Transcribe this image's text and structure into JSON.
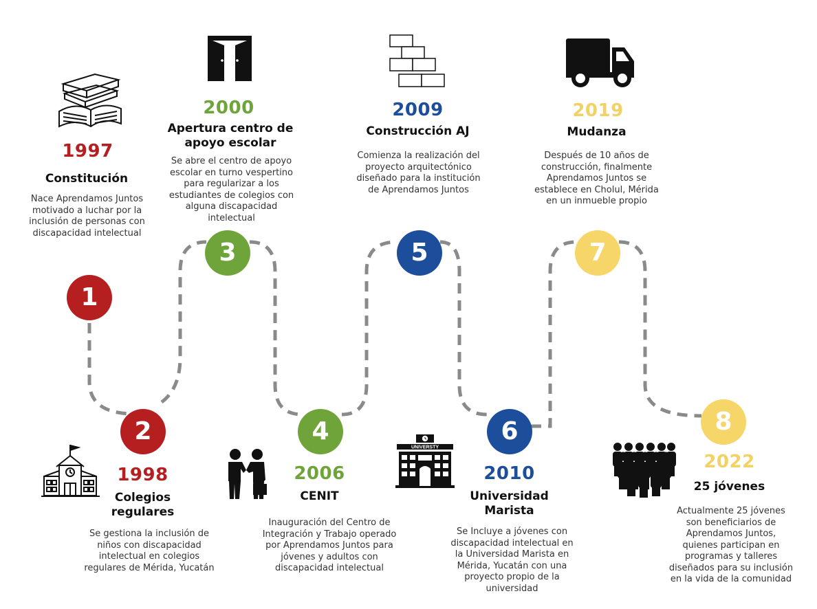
{
  "colors": {
    "red": "#b51f20",
    "green": "#6fa43a",
    "blue": "#1d4e9b",
    "yellow": "#f7d669",
    "path": "#8a8a8a"
  },
  "milestones": [
    {
      "number": "1",
      "year": "1997",
      "title": "Constitución",
      "description": "Nace Aprendamos Juntos motivado a luchar por la inclusión de personas con discapacidad intelectual",
      "icon": "books-icon"
    },
    {
      "number": "2",
      "year": "1998",
      "title": "Colegios regulares",
      "description": "Se gestiona la inclusión de niños con discapacidad intelectual en colegios regulares de Mérida, Yucatán",
      "icon": "school-icon"
    },
    {
      "number": "3",
      "year": "2000",
      "title": "Apertura centro de apoyo escolar",
      "description": "Se abre el centro de apoyo escolar en turno vespertino para regularizar a los estudiantes de colegios con alguna discapacidad intelectual",
      "icon": "door-icon"
    },
    {
      "number": "4",
      "year": "2006",
      "title": "CENIT",
      "description": "Inauguración del Centro de Integración y Trabajo operado por Aprendamos Juntos para jóvenes y adultos con discapacidad intelectual",
      "icon": "handshake-icon"
    },
    {
      "number": "5",
      "year": "2009",
      "title": "Construcción AJ",
      "description": "Comienza la realización del proyecto arquitectónico diseñado para la institución  de Aprendamos Juntos",
      "icon": "bricks-icon"
    },
    {
      "number": "6",
      "year": "2010",
      "title": "Universidad Marista",
      "description": "Se Incluye a jóvenes con discapacidad intelectual en la Universidad Marista en Mérida, Yucatán con una proyecto propio de la universidad",
      "icon": "university-icon",
      "icon_text": "UNIVERSTY"
    },
    {
      "number": "7",
      "year": "2019",
      "title": "Mudanza",
      "description": "Después de 10 años de construcción, finalmente Aprendamos Juntos se establece en Cholul, Mérida en un inmueble propio",
      "icon": "truck-icon"
    },
    {
      "number": "8",
      "year": "2022",
      "title": "25 jóvenes",
      "description": "Actualmente 25 jóvenes son beneficiarios de Aprendamos Juntos, quienes participan en programas y talleres diseñados para su inclusión en la vida de la comunidad",
      "icon": "people-icon"
    }
  ]
}
